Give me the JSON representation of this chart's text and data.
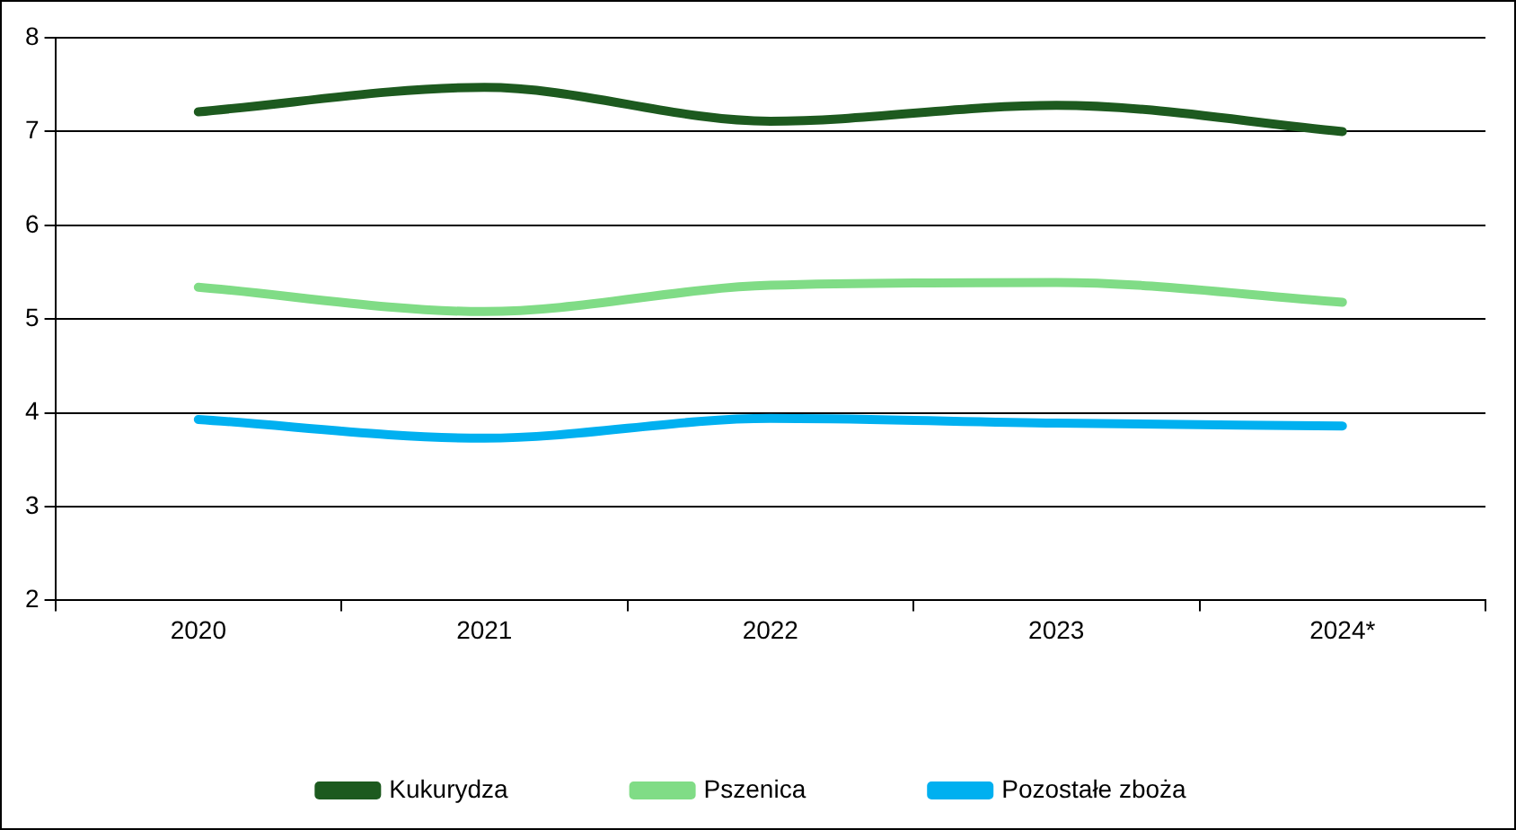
{
  "chart_data": {
    "type": "line",
    "categories": [
      "2020",
      "2021",
      "2022",
      "2023",
      "2024*"
    ],
    "series": [
      {
        "name": "Kukurydza",
        "color": "#1d5a1f",
        "values": [
          7.21,
          7.47,
          7.11,
          7.28,
          7.0
        ]
      },
      {
        "name": "Pszenica",
        "color": "#80dc86",
        "values": [
          5.34,
          5.08,
          5.36,
          5.39,
          5.18
        ]
      },
      {
        "name": "Pozostałe zboża",
        "color": "#00b0f0",
        "values": [
          3.93,
          3.73,
          3.94,
          3.89,
          3.86
        ]
      }
    ],
    "ylim": [
      2,
      8
    ],
    "yticks": [
      2,
      3,
      4,
      5,
      6,
      7,
      8
    ],
    "grid": "y",
    "legend": "bottom",
    "marker": "none",
    "line_style": "solid"
  }
}
